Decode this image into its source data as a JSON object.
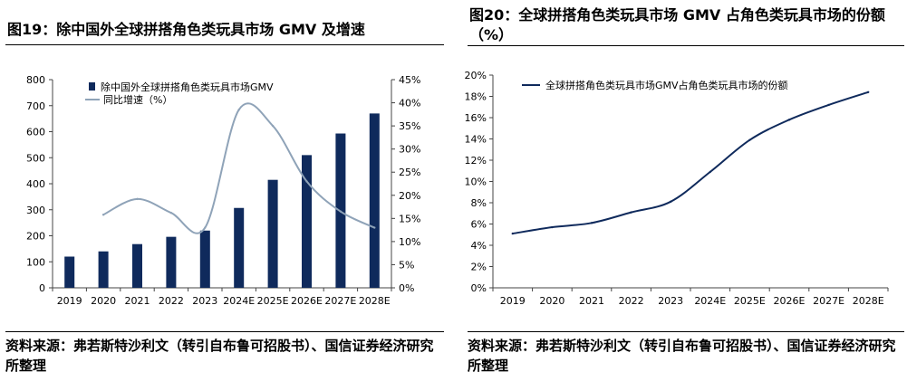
{
  "colors": {
    "bar": "#0f2a5c",
    "growth_line": "#8fa3b8",
    "share_line": "#0f2a5c",
    "axis": "#444444"
  },
  "left": {
    "title": "图19：除中国外全球拼搭角色类玩具市场 GMV 及增速",
    "source": "资料来源：弗若斯特沙利文（转引自布鲁可招股书）、国信证券经济研究所整理"
  },
  "right": {
    "title": "图20：全球拼搭角色类玩具市场 GMV 占角色类玩具市场的份额（%）",
    "source": "资料来源：弗若斯特沙利文（转引自布鲁可招股书）、国信证券经济研究所整理"
  },
  "chart_data": [
    {
      "type": "bar",
      "categories": [
        "2019",
        "2020",
        "2021",
        "2022",
        "2023",
        "2024E",
        "2025E",
        "2026E",
        "2027E",
        "2028E"
      ],
      "series": [
        {
          "name": "除中国外全球拼搭角色类玩具市场GMV",
          "type": "bar",
          "axis": "left",
          "values": [
            120,
            140,
            168,
            196,
            220,
            307,
            415,
            510,
            593,
            670
          ]
        },
        {
          "name": "同比增速（%）",
          "type": "line",
          "axis": "right",
          "values": [
            null,
            15.8,
            19.2,
            16.2,
            13.0,
            38.5,
            35.0,
            23.0,
            16.5,
            13.0
          ]
        }
      ],
      "ylim_left": [
        0,
        800
      ],
      "yticks_left": [
        "0",
        "100",
        "200",
        "300",
        "400",
        "500",
        "600",
        "700",
        "800"
      ],
      "ylim_right": [
        0,
        45
      ],
      "yticks_right": [
        "0%",
        "5%",
        "10%",
        "15%",
        "20%",
        "25%",
        "30%",
        "35%",
        "40%",
        "45%"
      ],
      "legend": "top-left",
      "grid": false
    },
    {
      "type": "line",
      "categories": [
        "2019",
        "2020",
        "2021",
        "2022",
        "2023",
        "2024E",
        "2025E",
        "2026E",
        "2027E",
        "2028E"
      ],
      "series": [
        {
          "name": "全球拼搭角色类玩具市场GMV占角色类玩具市场的份额",
          "values": [
            5.1,
            5.7,
            6.1,
            7.1,
            8.1,
            10.9,
            13.9,
            15.8,
            17.2,
            18.4
          ]
        }
      ],
      "ylim": [
        0,
        20
      ],
      "yticks": [
        "0%",
        "2%",
        "4%",
        "6%",
        "8%",
        "10%",
        "12%",
        "14%",
        "16%",
        "18%",
        "20%"
      ],
      "legend": "top-left",
      "grid": false
    }
  ]
}
